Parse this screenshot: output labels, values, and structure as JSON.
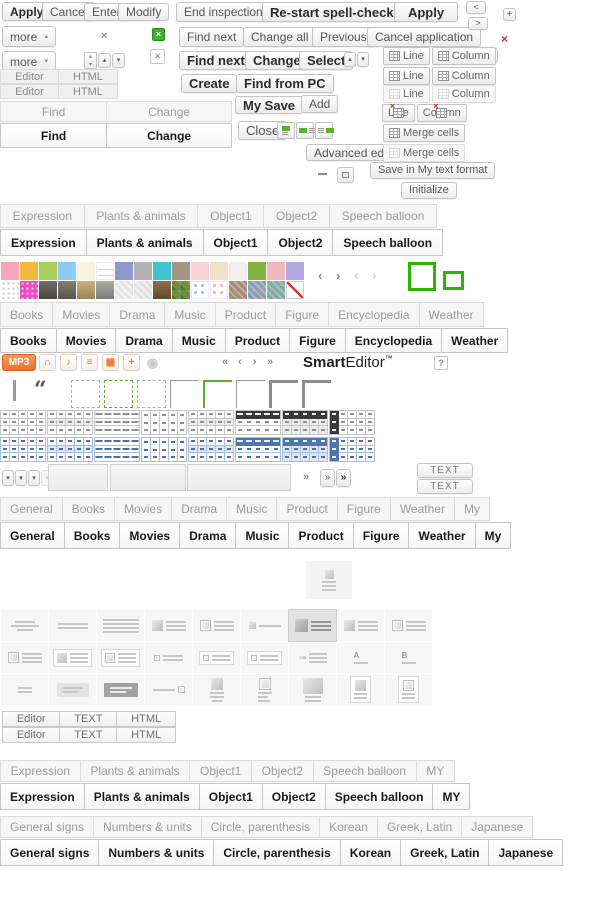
{
  "colors": {
    "accent_orange": "#f3753c",
    "accent_green": "#3fae2a",
    "alert_red": "#cc3333",
    "table_blue": "#5076ad",
    "tab_grey_text": "#9b9b9b",
    "tab_bold_text": "#191919"
  },
  "buttons": {
    "apply_small": "Apply",
    "cancel": "Cancel",
    "enter": "Enter",
    "modify": "Modify",
    "more": "more",
    "end_inspection": "End inspection",
    "restart_spell_check": "Re-start spell-check",
    "apply_large": "Apply",
    "find_next": "Find next",
    "change_all": "Change all",
    "previous": "Previous",
    "cancel_application": "Cancel application",
    "find_next_bold": "Find next",
    "change_bold": "Change",
    "select": "Select",
    "create": "Create",
    "find_from_pc": "Find from PC",
    "my_save": "My Save",
    "add": "Add",
    "close": "Close",
    "advanced_edit": "Advanced edit",
    "save_my_text_format": "Save in My text format",
    "initialize": "Initialize",
    "line": "Line",
    "column": "Column",
    "merge_cells": "Merge cells",
    "text_button": "TEXT"
  },
  "glyphs": {
    "close": "×",
    "capital_x": "X",
    "plus": "+",
    "minus": "−",
    "triangle_up": "▴",
    "triangle_down": "▾",
    "chevron_left": "<",
    "chevron_right": ">",
    "angle_left": "‹",
    "angle_right": "›",
    "angle_double_left": "«",
    "angle_double_right": "»",
    "quote": "“"
  },
  "tabs": {
    "editor_html": [
      "Editor",
      "HTML"
    ],
    "find_change": [
      "Find",
      "Change"
    ],
    "sticker": [
      "Expression",
      "Plants & animals",
      "Object1",
      "Object2",
      "Speech balloon"
    ],
    "category": [
      "Books",
      "Movies",
      "Drama",
      "Music",
      "Product",
      "Figure",
      "Encyclopedia",
      "Weather"
    ],
    "general": [
      "General",
      "Books",
      "Movies",
      "Drama",
      "Music",
      "Product",
      "Figure",
      "Weather",
      "My"
    ],
    "editor_mode": [
      "Editor",
      "TEXT",
      "HTML"
    ],
    "sticker_my": [
      "Expression",
      "Plants & animals",
      "Object1",
      "Object2",
      "Speech balloon",
      "MY"
    ],
    "symbols": [
      "General signs",
      "Numbers & units",
      "Circle, parenthesis",
      "Korean",
      "Greek, Latin",
      "Japanese"
    ]
  },
  "branding": {
    "smart": "Smart",
    "editor": "Editor",
    "trademark": "™",
    "help": "?"
  },
  "media_toolbar": {
    "mp3": "MP3",
    "icons": [
      {
        "name": "headphones-icon",
        "glyph": "∩"
      },
      {
        "name": "music-note-icon",
        "glyph": "♪"
      },
      {
        "name": "playlist-icon",
        "glyph": "≡"
      },
      {
        "name": "tv-icon",
        "glyph": "▦"
      },
      {
        "name": "add-icon",
        "glyph": "+"
      },
      {
        "name": "disc-icon",
        "glyph": "◉"
      }
    ]
  },
  "palette": {
    "row1": [
      "#f7a6b8",
      "#f6b73c",
      "#a8d05c",
      "#8ecbf5",
      "#f8f3dd",
      "lines:#ffffff",
      "#8e97cf",
      "#b3b3b3",
      "#3cc5ce",
      "#a29582",
      "#f7d3d8",
      "#f1e3c6",
      "#f0f0f0",
      "#82b23f",
      "#edb7bd",
      "#b4a9e2"
    ],
    "row2": [
      "dots:#ffffff",
      "dotsl:#e94fc5",
      "photo:#5a564e",
      "photo:#6e6a60",
      "photo:#c3a468",
      "photo:#9b9b97",
      "diag:#f2f2f2",
      "diag:#eeeeee",
      "photo:#7b5a33",
      "camo:#6d8f41",
      "dotsb:#ffffff",
      "dotsp:#ffffff",
      "diag2:#a58d74",
      "diag2:#8d9cb3",
      "diag2:#84a8a4",
      "slash:#ffffff"
    ]
  },
  "table_styles": {
    "themes": [
      "grey",
      "blue"
    ],
    "styles": [
      "grid",
      "grid-shaded",
      "horizontal-lines",
      "columns",
      "striped",
      "header-dark",
      "header-grid",
      "first-column-dark"
    ]
  },
  "layout_icons": {
    "single": "image-top-text",
    "rows": [
      [
        "align-center-lines",
        "divider-line",
        "full-lines",
        "image-left-text",
        "image-left-boxed-text",
        "thumb-small-text",
        "image-left-text-selected",
        "image-left-top-text",
        "image-left-boxed-text-2"
      ],
      [
        "boxed-image-text",
        "card-image-text",
        "card-boxed-image-text",
        "small-image-text",
        "card-small-image-text",
        "card-small-boxed-image-text",
        "dash-text",
        "heading-a-line",
        "heading-b-line"
      ],
      [
        "two-lines",
        "panel-lines",
        "dark-panel-lines",
        "line-with-box",
        "image-top-center-text",
        "image-top-left-text",
        "large-image-top-text",
        "card-image-top-text",
        "card-boxed-image-top-text"
      ]
    ]
  }
}
